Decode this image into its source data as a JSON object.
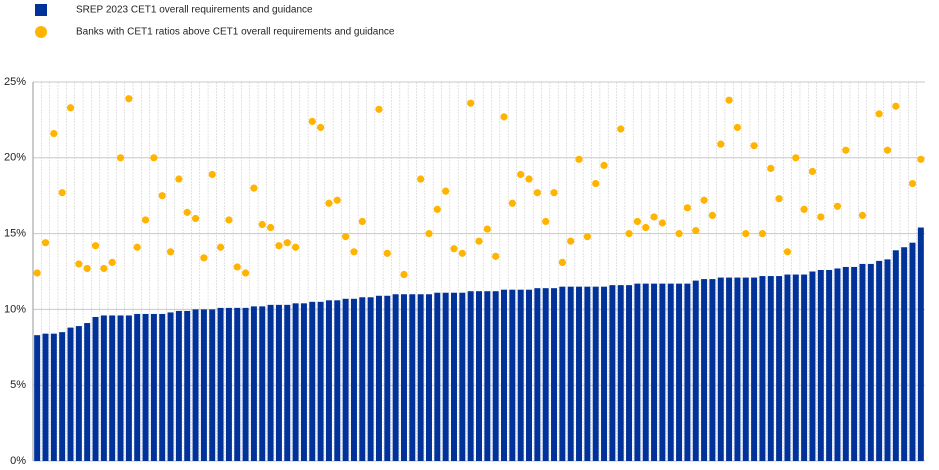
{
  "chart_data": {
    "type": "bar",
    "ylim": [
      0,
      25
    ],
    "yticks": [
      {
        "value": 0,
        "label": "0%"
      },
      {
        "value": 5,
        "label": "5%"
      },
      {
        "value": 10,
        "label": "10%"
      },
      {
        "value": 15,
        "label": "15%"
      },
      {
        "value": 20,
        "label": "20%"
      },
      {
        "value": 25,
        "label": "25%"
      }
    ],
    "grid": true,
    "series": [
      {
        "name": "SREP 2023 CET1 overall requirements and guidance",
        "type": "bar",
        "color": "#003299",
        "values": [
          8.3,
          8.4,
          8.4,
          8.5,
          8.8,
          8.9,
          9.1,
          9.5,
          9.6,
          9.6,
          9.6,
          9.6,
          9.7,
          9.7,
          9.7,
          9.7,
          9.8,
          9.9,
          9.9,
          10.0,
          10.0,
          10.0,
          10.1,
          10.1,
          10.1,
          10.1,
          10.2,
          10.2,
          10.3,
          10.3,
          10.3,
          10.4,
          10.4,
          10.5,
          10.5,
          10.6,
          10.6,
          10.7,
          10.7,
          10.8,
          10.8,
          10.9,
          10.9,
          11.0,
          11.0,
          11.0,
          11.0,
          11.0,
          11.1,
          11.1,
          11.1,
          11.1,
          11.2,
          11.2,
          11.2,
          11.2,
          11.3,
          11.3,
          11.3,
          11.3,
          11.4,
          11.4,
          11.4,
          11.5,
          11.5,
          11.5,
          11.5,
          11.5,
          11.5,
          11.6,
          11.6,
          11.6,
          11.7,
          11.7,
          11.7,
          11.7,
          11.7,
          11.7,
          11.7,
          11.9,
          12.0,
          12.0,
          12.1,
          12.1,
          12.1,
          12.1,
          12.1,
          12.2,
          12.2,
          12.2,
          12.3,
          12.3,
          12.3,
          12.5,
          12.6,
          12.6,
          12.7,
          12.8,
          12.8,
          13.0,
          13.0,
          13.2,
          13.3,
          13.9,
          14.1,
          14.4,
          15.4
        ]
      },
      {
        "name": "Banks with CET1 ratios above CET1 overall requirements and guidance",
        "type": "scatter",
        "color": "#ffb400",
        "values": [
          12.4,
          14.4,
          21.6,
          17.7,
          23.3,
          13.0,
          12.7,
          14.2,
          12.7,
          13.1,
          20.0,
          23.9,
          14.1,
          15.9,
          20.0,
          17.5,
          13.8,
          18.6,
          16.4,
          16.0,
          13.4,
          18.9,
          14.1,
          15.9,
          12.8,
          12.4,
          18.0,
          15.6,
          15.4,
          14.2,
          14.4,
          14.1,
          null,
          22.4,
          22.0,
          17.0,
          17.2,
          14.8,
          13.8,
          15.8,
          null,
          23.2,
          13.7,
          null,
          12.3,
          null,
          18.6,
          15.0,
          16.6,
          17.8,
          14.0,
          13.7,
          23.6,
          14.5,
          15.3,
          13.5,
          22.7,
          17.0,
          18.9,
          18.6,
          17.7,
          15.8,
          17.7,
          13.1,
          14.5,
          19.9,
          14.8,
          18.3,
          19.5,
          null,
          21.9,
          15.0,
          15.8,
          15.4,
          16.1,
          15.7,
          null,
          15.0,
          16.7,
          15.2,
          17.2,
          16.2,
          20.9,
          23.8,
          22.0,
          15.0,
          20.8,
          15.0,
          19.3,
          17.3,
          13.8,
          20.0,
          16.6,
          19.1,
          16.1,
          null,
          16.8,
          20.5,
          null,
          16.2,
          null,
          22.9,
          20.5,
          23.4,
          null,
          18.3,
          19.9
        ]
      }
    ]
  }
}
